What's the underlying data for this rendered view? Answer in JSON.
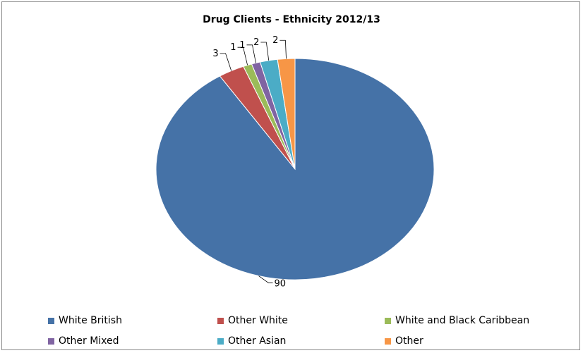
{
  "chart_data": {
    "type": "pie",
    "title": "Drug Clients - Ethnicity 2012/13",
    "slices": [
      {
        "label": "White British",
        "value": 90,
        "color": "#4572a7"
      },
      {
        "label": "Other White",
        "value": 3,
        "color": "#c0504d"
      },
      {
        "label": "White and Black Caribbean",
        "value": 1,
        "color": "#9bbb59"
      },
      {
        "label": "Other Mixed",
        "value": 1,
        "color": "#8064a2"
      },
      {
        "label": "Other Asian",
        "value": 2,
        "color": "#4bacc6"
      },
      {
        "label": "Other",
        "value": 2,
        "color": "#f79646"
      }
    ],
    "legend_position": "bottom",
    "data_labels": true
  }
}
